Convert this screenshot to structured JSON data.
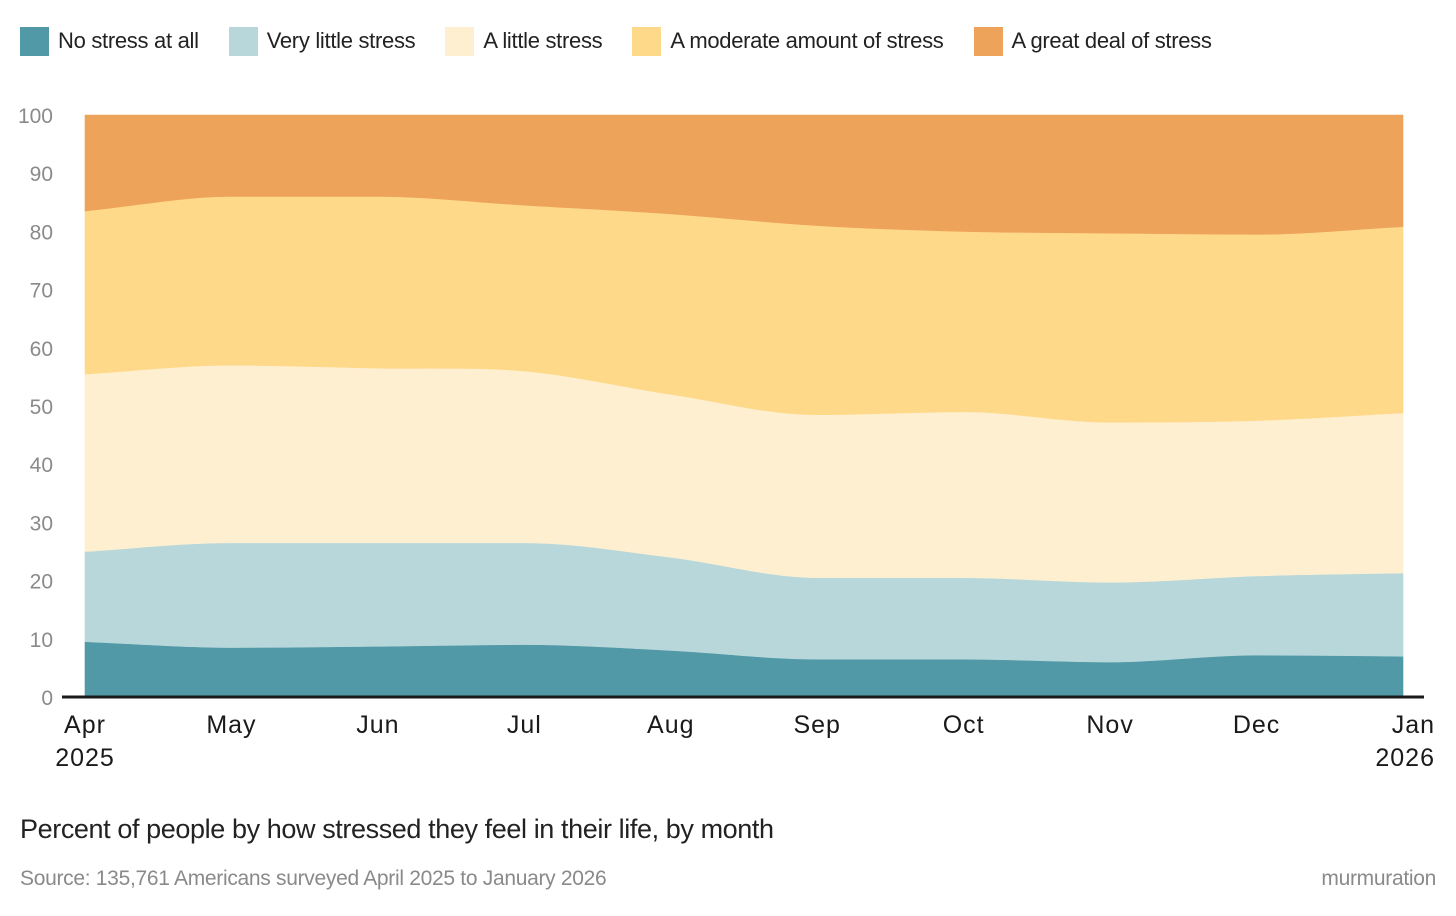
{
  "chart_data": {
    "type": "area",
    "stacked": true,
    "x_labels": [
      {
        "month": "Apr",
        "year": "2025"
      },
      {
        "month": "May",
        "year": ""
      },
      {
        "month": "Jun",
        "year": ""
      },
      {
        "month": "Jul",
        "year": ""
      },
      {
        "month": "Aug",
        "year": ""
      },
      {
        "month": "Sep",
        "year": ""
      },
      {
        "month": "Oct",
        "year": ""
      },
      {
        "month": "Nov",
        "year": ""
      },
      {
        "month": "Dec",
        "year": ""
      },
      {
        "month": "Jan",
        "year": "2026"
      }
    ],
    "series": [
      {
        "name": "No stress at all",
        "color": "#5199a6",
        "values": [
          9.5,
          8.5,
          8.7,
          9.0,
          8.0,
          6.5,
          6.5,
          6.0,
          7.2,
          7.0
        ]
      },
      {
        "name": "Very little stress",
        "color": "#b8d7db",
        "values": [
          15.5,
          18.0,
          17.8,
          17.5,
          16.0,
          14.0,
          14.0,
          13.7,
          13.6,
          14.3
        ]
      },
      {
        "name": "A little stress",
        "color": "#feefd0",
        "values": [
          30.5,
          30.5,
          30.0,
          29.5,
          28.0,
          28.0,
          28.5,
          27.5,
          26.7,
          27.5
        ]
      },
      {
        "name": "A moderate amount of stress",
        "color": "#fed98a",
        "values": [
          28.0,
          29.0,
          29.5,
          28.5,
          31.0,
          32.5,
          31.0,
          32.5,
          32.0,
          32.0
        ]
      },
      {
        "name": "A great deal of stress",
        "color": "#eea35a",
        "values": [
          16.5,
          14.0,
          14.0,
          15.5,
          17.0,
          19.0,
          20.0,
          20.3,
          20.5,
          19.2
        ]
      }
    ],
    "y_ticks": [
      0,
      10,
      20,
      30,
      40,
      50,
      60,
      70,
      80,
      90,
      100
    ],
    "ylim": [
      0,
      100
    ],
    "title": "Percent of people by how stressed they feel in their life, by month",
    "source": "Source: 135,761 Americans surveyed April 2025 to January 2026",
    "legend_position": "top-left"
  },
  "brand": "murmuration",
  "colors": {
    "axis": "#1a1a1a",
    "tick_text": "#8a8a8a",
    "month_text": "#1a1a1a"
  }
}
